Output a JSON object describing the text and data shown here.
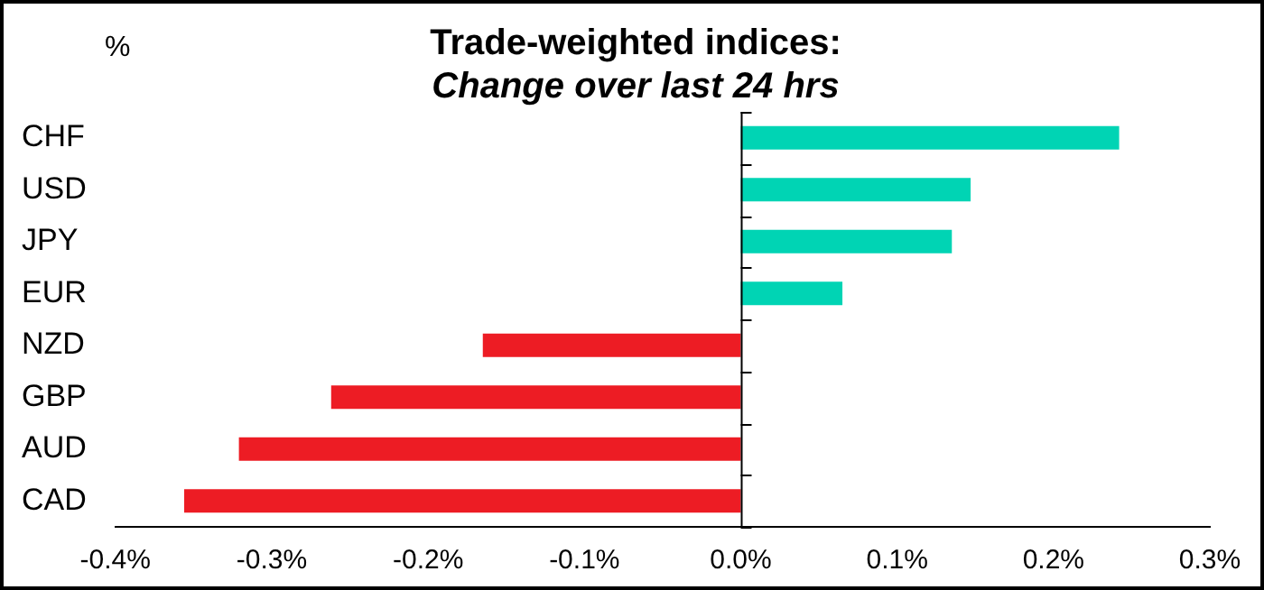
{
  "chart_data": {
    "type": "bar",
    "orientation": "horizontal",
    "title": "Trade-weighted indices:",
    "subtitle": "Change over last 24 hrs",
    "ylabel": "%",
    "categories": [
      "CHF",
      "USD",
      "JPY",
      "EUR",
      "NZD",
      "GBP",
      "AUD",
      "CAD"
    ],
    "values": [
      0.242,
      0.147,
      0.135,
      0.065,
      -0.165,
      -0.262,
      -0.321,
      -0.356
    ],
    "colors": [
      "#00d4b4",
      "#00d4b4",
      "#00d4b4",
      "#00d4b4",
      "#ed1c24",
      "#ed1c24",
      "#ed1c24",
      "#ed1c24"
    ],
    "xlim": [
      -0.4,
      0.3
    ],
    "xticks": [
      {
        "value": -0.4,
        "label": "-0.4%"
      },
      {
        "value": -0.3,
        "label": "-0.3%"
      },
      {
        "value": -0.2,
        "label": "-0.2%"
      },
      {
        "value": -0.1,
        "label": "-0.1%"
      },
      {
        "value": 0,
        "label": "0.0%"
      },
      {
        "value": 0.1,
        "label": "0.1%"
      },
      {
        "value": 0.2,
        "label": "0.2%"
      },
      {
        "value": 0.3,
        "label": "0.3%"
      }
    ],
    "legend": false
  }
}
